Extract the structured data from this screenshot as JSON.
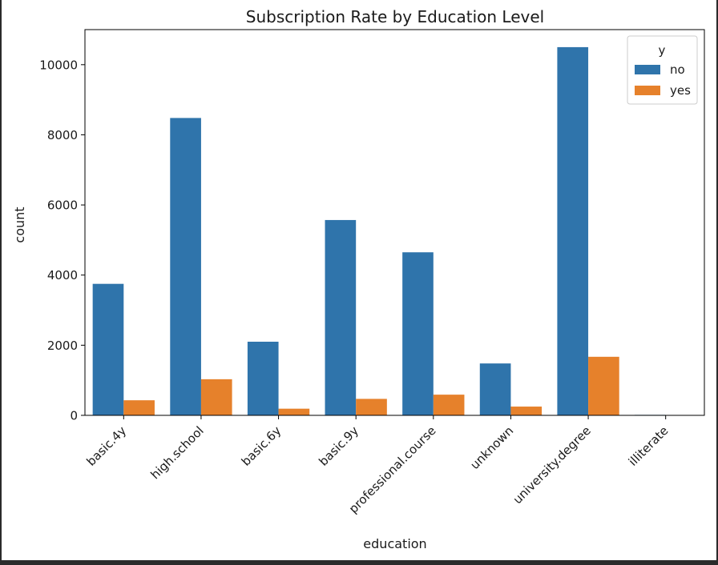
{
  "chart_data": {
    "type": "bar",
    "title": "Subscription Rate by Education Level",
    "xlabel": "education",
    "ylabel": "count",
    "categories": [
      "basic.4y",
      "high.school",
      "basic.6y",
      "basic.9y",
      "professional.course",
      "unknown",
      "university.degree",
      "illiterate"
    ],
    "series": [
      {
        "name": "no",
        "color": "#2f74ab",
        "values": [
          3750,
          8480,
          2100,
          5570,
          4650,
          1480,
          10500,
          14
        ]
      },
      {
        "name": "yes",
        "color": "#e6812b",
        "values": [
          430,
          1030,
          190,
          470,
          590,
          250,
          1670,
          4
        ]
      }
    ],
    "ylim": [
      0,
      11000
    ],
    "yticks": [
      0,
      2000,
      4000,
      6000,
      8000,
      10000
    ],
    "legend": {
      "title": "y",
      "placement": "top-right"
    },
    "grid": false
  }
}
